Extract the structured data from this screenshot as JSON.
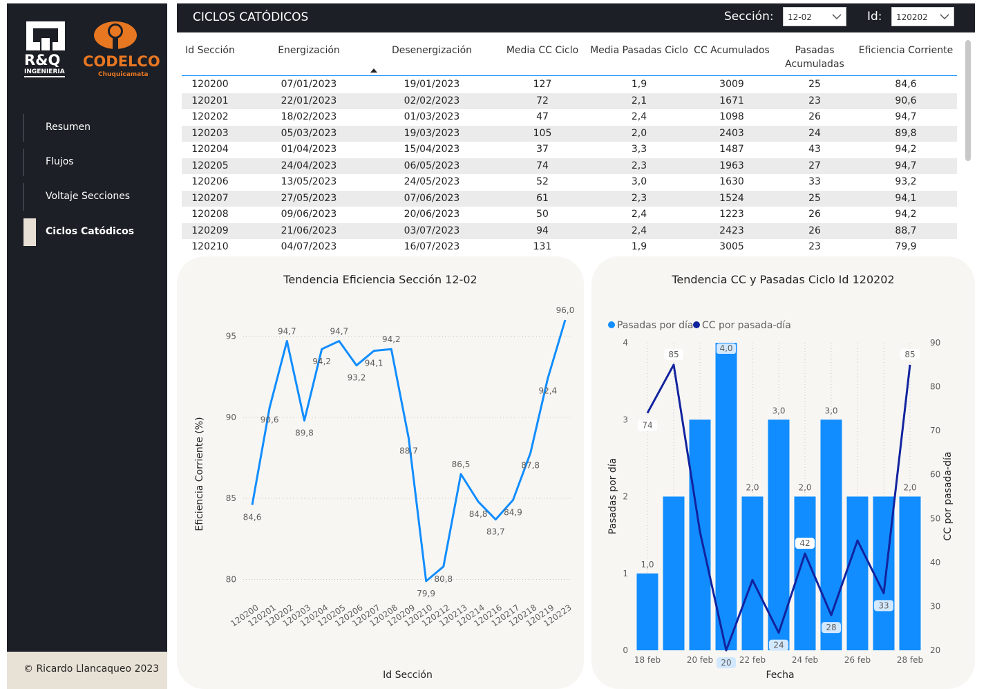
{
  "brand": {
    "rq_name": "R&Q",
    "rq_sub": "INGENIERIA",
    "codelco_name": "CODELCO",
    "codelco_sub": "Chuquicamata"
  },
  "nav": [
    {
      "label": "Resumen",
      "active": false
    },
    {
      "label": "Flujos",
      "active": false
    },
    {
      "label": "Voltaje Secciones",
      "active": false
    },
    {
      "label": "Ciclos Catódicos",
      "active": true
    }
  ],
  "footer": "© Ricardo Llancaqueo 2023",
  "header": {
    "title": "CICLOS CATÓDICOS",
    "section_label": "Sección:",
    "section_value": "12-02",
    "id_label": "Id:",
    "id_value": "120202"
  },
  "table": {
    "columns": [
      "Id Sección",
      "Energización",
      "Desenergización",
      "Media CC Ciclo",
      "Media Pasadas Ciclo",
      "CC Acumulados",
      "Pasadas Acumuladas",
      "Eficiencia Corriente"
    ],
    "rows": [
      [
        "120200",
        "07/01/2023",
        "19/01/2023",
        "127",
        "1,9",
        "3009",
        "25",
        "84,6"
      ],
      [
        "120201",
        "22/01/2023",
        "02/02/2023",
        "72",
        "2,1",
        "1671",
        "23",
        "90,6"
      ],
      [
        "120202",
        "18/02/2023",
        "01/03/2023",
        "47",
        "2,4",
        "1098",
        "26",
        "94,7"
      ],
      [
        "120203",
        "05/03/2023",
        "19/03/2023",
        "105",
        "2,0",
        "2403",
        "24",
        "89,8"
      ],
      [
        "120204",
        "01/04/2023",
        "15/04/2023",
        "37",
        "3,3",
        "1487",
        "43",
        "94,2"
      ],
      [
        "120205",
        "24/04/2023",
        "06/05/2023",
        "74",
        "2,3",
        "1963",
        "27",
        "94,7"
      ],
      [
        "120206",
        "13/05/2023",
        "24/05/2023",
        "52",
        "3,0",
        "1630",
        "33",
        "93,2"
      ],
      [
        "120207",
        "27/05/2023",
        "07/06/2023",
        "61",
        "2,3",
        "1524",
        "25",
        "94,1"
      ],
      [
        "120208",
        "09/06/2023",
        "20/06/2023",
        "50",
        "2,4",
        "1223",
        "26",
        "94,2"
      ],
      [
        "120209",
        "21/06/2023",
        "03/07/2023",
        "94",
        "2,4",
        "2423",
        "26",
        "88,7"
      ],
      [
        "120210",
        "04/07/2023",
        "16/07/2023",
        "131",
        "1,9",
        "3005",
        "23",
        "79,9"
      ]
    ]
  },
  "chart_data": [
    {
      "type": "line",
      "title": "Tendencia Eficiencia Sección 12-02",
      "xlabel": "Id Sección",
      "ylabel": "Eficiencia Corriente (%)",
      "ylim": [
        79,
        96
      ],
      "yticks": [
        80,
        85,
        90,
        95
      ],
      "color": "#118dff",
      "categories": [
        "120200",
        "120201",
        "120202",
        "120203",
        "120204",
        "120205",
        "120206",
        "120207",
        "120208",
        "120209",
        "120210",
        "120212",
        "120213",
        "120214",
        "120216",
        "120217",
        "120218",
        "120219",
        "120223"
      ],
      "values": [
        84.6,
        90.6,
        94.7,
        89.8,
        94.2,
        94.7,
        93.2,
        94.1,
        94.2,
        88.7,
        79.9,
        80.8,
        86.5,
        84.8,
        83.7,
        84.9,
        87.8,
        92.4,
        96.0
      ],
      "labels": [
        "84,6",
        "90,6",
        "94,7",
        "89,8",
        "94,2",
        "94,7",
        "93,2",
        "94,1",
        "94,2",
        "88,7",
        "79,9",
        "80,8",
        "86,5",
        "84,8",
        "83,7",
        "84,9",
        "87,8",
        "92,4",
        "96,0"
      ],
      "grid": true
    },
    {
      "type": "bar",
      "title": "Tendencia CC y Pasadas Ciclo Id 120202",
      "xlabel": "Fecha",
      "ylabel_left": "Pasadas por día",
      "ylabel_right": "CC por pasada-día",
      "legend_position": "top-left",
      "ylim_left": [
        0,
        4
      ],
      "yticks_left": [
        0,
        1,
        2,
        3,
        4
      ],
      "ylim_right": [
        20,
        90
      ],
      "yticks_right": [
        20,
        30,
        40,
        50,
        60,
        70,
        80,
        90
      ],
      "x_ticks": [
        "18 feb",
        "20 feb",
        "22 feb",
        "24 feb",
        "26 feb",
        "28 feb"
      ],
      "days": 11,
      "series": [
        {
          "name": "Pasadas por día",
          "kind": "bar",
          "color": "#118dff",
          "values": [
            1,
            2,
            3,
            4,
            2,
            3,
            2,
            3,
            2,
            2,
            2
          ],
          "labels": [
            "1,0",
            "",
            "",
            "4,0",
            "2,0",
            "3,0",
            "2,0",
            "3,0",
            "",
            "",
            "2,0"
          ]
        },
        {
          "name": "CC por pasada-día",
          "kind": "line",
          "color": "#12239e",
          "values": [
            74,
            85,
            47,
            20,
            36,
            24,
            42,
            28,
            45,
            33,
            85
          ],
          "labels": [
            "74",
            "85",
            "",
            "20",
            "",
            "24",
            "42",
            "28",
            "",
            "33",
            "85"
          ]
        }
      ]
    }
  ]
}
